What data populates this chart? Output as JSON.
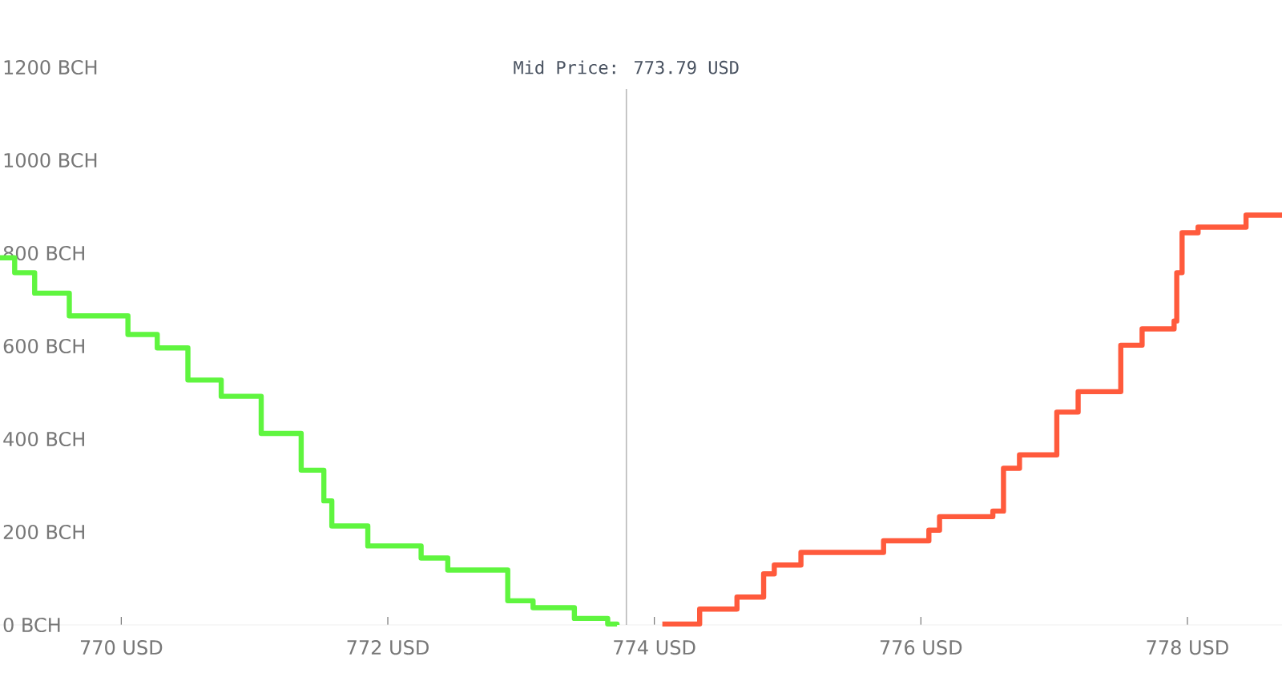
{
  "chart_data": {
    "type": "step",
    "xlim": [
      769.09,
      778.71
    ],
    "ylim": [
      0,
      1200
    ],
    "xticks": [
      {
        "value": 770,
        "label": "770 USD"
      },
      {
        "value": 772,
        "label": "772 USD"
      },
      {
        "value": 774,
        "label": "774 USD"
      },
      {
        "value": 776,
        "label": "776 USD"
      },
      {
        "value": 778,
        "label": "778 USD"
      }
    ],
    "yticks": [
      {
        "value": 0,
        "label": "0 BCH"
      },
      {
        "value": 200,
        "label": "200 BCH"
      },
      {
        "value": 400,
        "label": "400 BCH"
      },
      {
        "value": 600,
        "label": "600 BCH"
      },
      {
        "value": 800,
        "label": "800 BCH"
      },
      {
        "value": 1000,
        "label": "1000 BCH"
      },
      {
        "value": 1200,
        "label": "1200 BCH"
      }
    ],
    "grid": false,
    "ref_lines": [
      {
        "axis": "x",
        "value": 773.79,
        "label": "Mid Price: 773.79 USD",
        "color": "#b8b8b8"
      }
    ],
    "series": [
      {
        "color": "#5ff53f",
        "x": [
          769.09,
          769.2,
          769.35,
          769.61,
          770.05,
          770.27,
          770.5,
          770.75,
          771.05,
          771.35,
          771.52,
          771.58,
          771.85,
          772.25,
          772.45,
          772.9,
          773.09,
          773.4,
          773.65,
          773.72
        ],
        "values": [
          790,
          758,
          714,
          665,
          625,
          596,
          527,
          492,
          412,
          333,
          267,
          213,
          170,
          144,
          118,
          52,
          37,
          14,
          2,
          0
        ]
      },
      {
        "color": "#ff5a3c",
        "x": [
          774.06,
          774.34,
          774.62,
          774.82,
          774.9,
          775.1,
          775.72,
          776.06,
          776.14,
          776.54,
          776.62,
          776.74,
          777.02,
          777.18,
          777.5,
          777.66,
          777.9,
          777.92,
          777.96,
          778.08,
          778.44,
          778.71
        ],
        "values": [
          2,
          34,
          60,
          110,
          129,
          156,
          181,
          204,
          233,
          245,
          337,
          366,
          458,
          502,
          602,
          637,
          654,
          758,
          844,
          856,
          882,
          882
        ]
      }
    ]
  }
}
